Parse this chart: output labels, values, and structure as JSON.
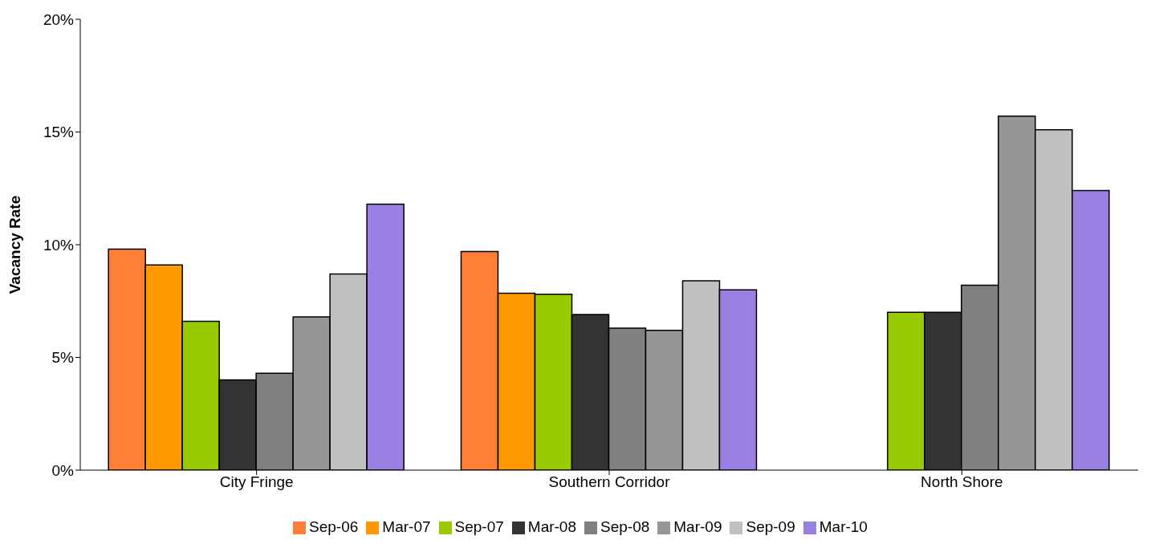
{
  "chart_data": {
    "type": "bar",
    "ylabel": "Vacancy Rate",
    "categories": [
      "City Fringe",
      "Southern Corridor",
      "North Shore"
    ],
    "series": [
      {
        "name": "Sep-06",
        "color": "#ff7f35",
        "values": [
          9.8,
          9.7,
          null
        ]
      },
      {
        "name": "Mar-07",
        "color": "#ff9900",
        "values": [
          9.1,
          7.85,
          null
        ]
      },
      {
        "name": "Sep-07",
        "color": "#99cc00",
        "values": [
          6.6,
          7.8,
          7.0
        ]
      },
      {
        "name": "Mar-08",
        "color": "#333333",
        "values": [
          4.0,
          6.9,
          7.0
        ]
      },
      {
        "name": "Sep-08",
        "color": "#808080",
        "values": [
          4.3,
          6.3,
          8.2
        ]
      },
      {
        "name": "Mar-09",
        "color": "#969696",
        "values": [
          6.8,
          6.2,
          15.7
        ]
      },
      {
        "name": "Sep-09",
        "color": "#c0c0c0",
        "values": [
          8.7,
          8.4,
          15.1
        ]
      },
      {
        "name": "Mar-10",
        "color": "#9b80e3",
        "values": [
          11.8,
          8.0,
          12.4
        ]
      }
    ],
    "ylim": [
      0,
      20
    ],
    "yticks": [
      {
        "value": 0,
        "label": "0%"
      },
      {
        "value": 5,
        "label": "5%"
      },
      {
        "value": 10,
        "label": "10%"
      },
      {
        "value": 15,
        "label": "15%"
      },
      {
        "value": 20,
        "label": "20%"
      }
    ],
    "grid": false,
    "legend": "bottom"
  }
}
